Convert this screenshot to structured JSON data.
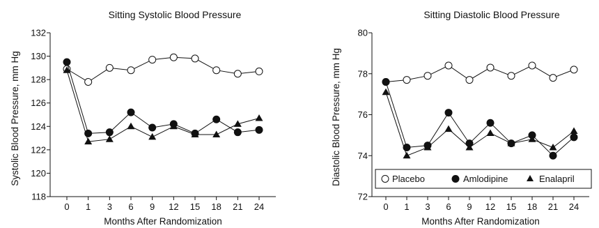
{
  "chart_data": [
    {
      "type": "line",
      "title": "Sitting Systolic Blood Pressure",
      "xlabel": "Months After Randomization",
      "ylabel": "Systolic Blood Pressure, mm Hg",
      "x": [
        0,
        1,
        3,
        6,
        9,
        12,
        15,
        18,
        21,
        24
      ],
      "x_tick_labels": [
        "0",
        "1",
        "3",
        "6",
        "9",
        "12",
        "15",
        "18",
        "21",
        "24"
      ],
      "ylim": [
        118,
        132
      ],
      "y_ticks": [
        118,
        120,
        122,
        124,
        126,
        128,
        130,
        132
      ],
      "grid": false,
      "legend": false,
      "series": [
        {
          "key": "placebo",
          "marker": "open-circle",
          "values": [
            128.9,
            127.8,
            129.0,
            128.8,
            129.7,
            129.9,
            129.8,
            128.8,
            128.5,
            128.7
          ]
        },
        {
          "key": "amlodipine",
          "marker": "filled-circle",
          "values": [
            129.5,
            123.4,
            123.5,
            125.2,
            123.9,
            124.2,
            123.4,
            124.6,
            123.5,
            123.7
          ]
        },
        {
          "key": "enalapril",
          "marker": "filled-triangle",
          "values": [
            128.8,
            122.7,
            122.9,
            124.0,
            123.1,
            124.0,
            123.3,
            123.3,
            124.2,
            124.7
          ]
        }
      ]
    },
    {
      "type": "line",
      "title": "Sitting Diastolic Blood Pressure",
      "xlabel": "Months After Randomization",
      "ylabel": "Diastolic Blood Pressure, mm Hg",
      "x": [
        0,
        1,
        3,
        6,
        9,
        12,
        15,
        18,
        21,
        24
      ],
      "x_tick_labels": [
        "0",
        "1",
        "3",
        "6",
        "9",
        "12",
        "15",
        "18",
        "21",
        "24"
      ],
      "ylim": [
        72,
        80
      ],
      "y_ticks": [
        72,
        74,
        76,
        78,
        80
      ],
      "grid": false,
      "legend": "bottom",
      "series": [
        {
          "key": "placebo",
          "name": "Placebo",
          "marker": "open-circle",
          "values": [
            77.6,
            77.7,
            77.9,
            78.4,
            77.7,
            78.3,
            77.9,
            78.4,
            77.8,
            78.2
          ]
        },
        {
          "key": "amlodipine",
          "name": "Amlodipine",
          "marker": "filled-circle",
          "values": [
            77.6,
            74.4,
            74.5,
            76.1,
            74.6,
            75.6,
            74.6,
            75.0,
            74.0,
            74.9
          ]
        },
        {
          "key": "enalapril",
          "name": "Enalapril",
          "marker": "filled-triangle",
          "values": [
            77.1,
            74.0,
            74.4,
            75.3,
            74.4,
            75.1,
            74.6,
            74.8,
            74.4,
            75.2
          ]
        }
      ]
    }
  ]
}
